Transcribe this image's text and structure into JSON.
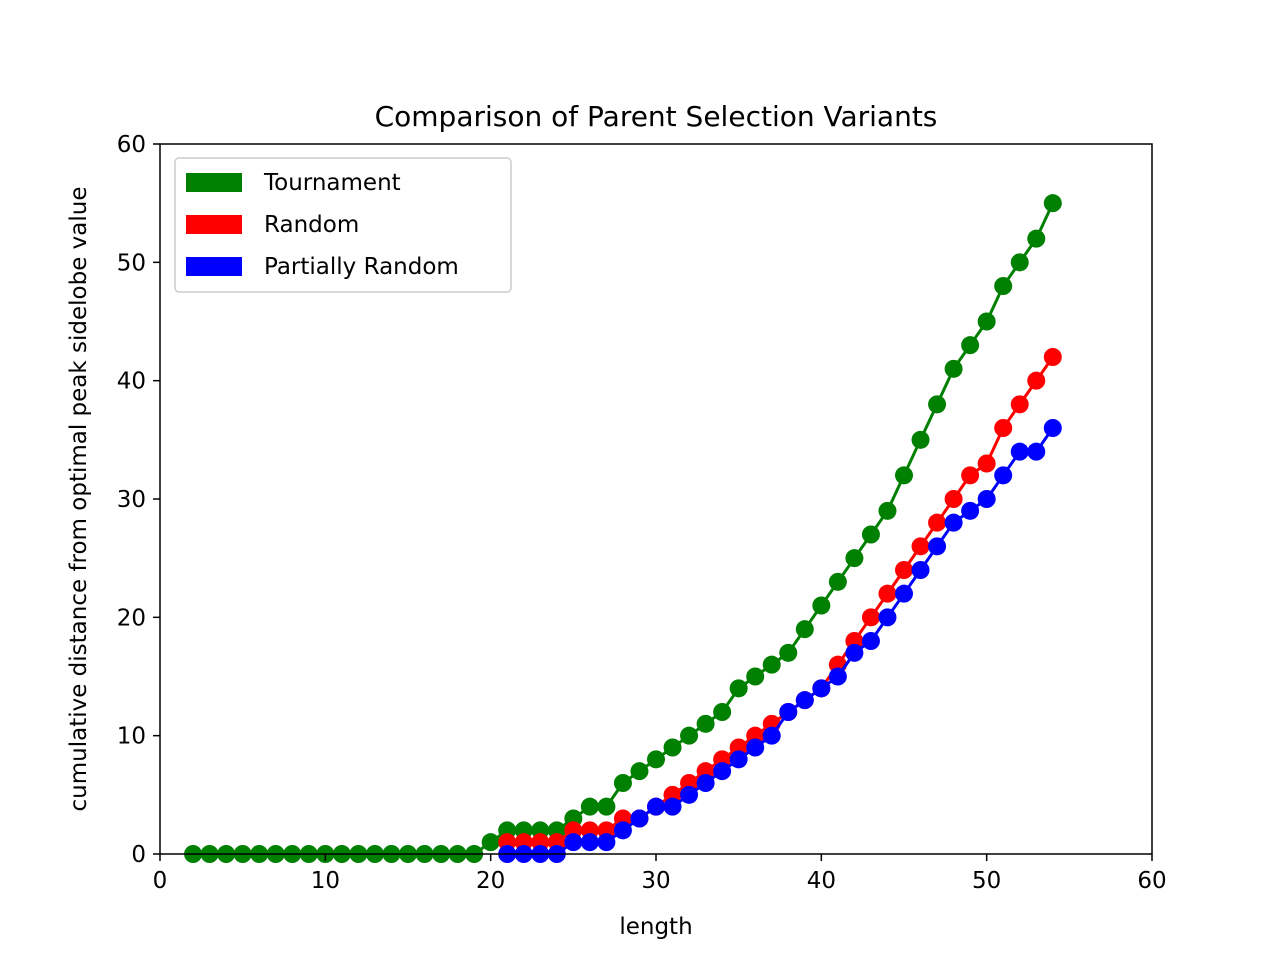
{
  "chart_data": {
    "type": "line",
    "title": "Comparison of Parent Selection Variants",
    "xlabel": "length",
    "ylabel": "cumulative distance from optimal peak sidelobe value",
    "xlim": [
      0,
      60
    ],
    "ylim": [
      0,
      60
    ],
    "xticks": [
      0,
      10,
      20,
      30,
      40,
      50,
      60
    ],
    "yticks": [
      0,
      10,
      20,
      30,
      40,
      50,
      60
    ],
    "grid": false,
    "legend_position": "upper-left",
    "series": [
      {
        "name": "Tournament",
        "color": "#008000",
        "x": [
          2,
          3,
          4,
          5,
          6,
          7,
          8,
          9,
          10,
          11,
          12,
          13,
          14,
          15,
          16,
          17,
          18,
          19,
          20,
          21,
          22,
          23,
          24,
          25,
          26,
          27,
          28,
          29,
          30,
          31,
          32,
          33,
          34,
          35,
          36,
          37,
          38,
          39,
          40,
          41,
          42,
          43,
          44,
          45,
          46,
          47,
          48,
          49,
          50,
          51,
          52,
          53,
          54
        ],
        "y": [
          0,
          0,
          0,
          0,
          0,
          0,
          0,
          0,
          0,
          0,
          0,
          0,
          0,
          0,
          0,
          0,
          0,
          0,
          1,
          2,
          2,
          2,
          2,
          3,
          4,
          4,
          6,
          7,
          8,
          9,
          10,
          11,
          12,
          14,
          15,
          16,
          17,
          19,
          21,
          23,
          25,
          27,
          29,
          32,
          35,
          38,
          41,
          43,
          45,
          48,
          50,
          52,
          55
        ]
      },
      {
        "name": "Random",
        "color": "#ff0000",
        "x": [
          21,
          22,
          23,
          24,
          25,
          26,
          27,
          28,
          29,
          30,
          31,
          32,
          33,
          34,
          35,
          36,
          37,
          38,
          39,
          40,
          41,
          42,
          43,
          44,
          45,
          46,
          47,
          48,
          49,
          50,
          51,
          52,
          53,
          54
        ],
        "y": [
          1,
          1,
          1,
          1,
          2,
          2,
          2,
          3,
          3,
          4,
          5,
          6,
          7,
          8,
          9,
          10,
          11,
          12,
          13,
          14,
          16,
          18,
          20,
          22,
          24,
          26,
          28,
          30,
          32,
          33,
          36,
          38,
          40,
          42
        ]
      },
      {
        "name": "Partially Random",
        "color": "#0000ff",
        "x": [
          21,
          22,
          23,
          24,
          25,
          26,
          27,
          28,
          29,
          30,
          31,
          32,
          33,
          34,
          35,
          36,
          37,
          38,
          39,
          40,
          41,
          42,
          43,
          44,
          45,
          46,
          47,
          48,
          49,
          50,
          51,
          52,
          53,
          54
        ],
        "y": [
          0,
          0,
          0,
          0,
          1,
          1,
          1,
          2,
          3,
          4,
          4,
          5,
          6,
          7,
          8,
          9,
          10,
          12,
          13,
          14,
          15,
          17,
          18,
          20,
          22,
          24,
          26,
          28,
          29,
          30,
          32,
          34,
          34,
          36
        ]
      }
    ]
  }
}
